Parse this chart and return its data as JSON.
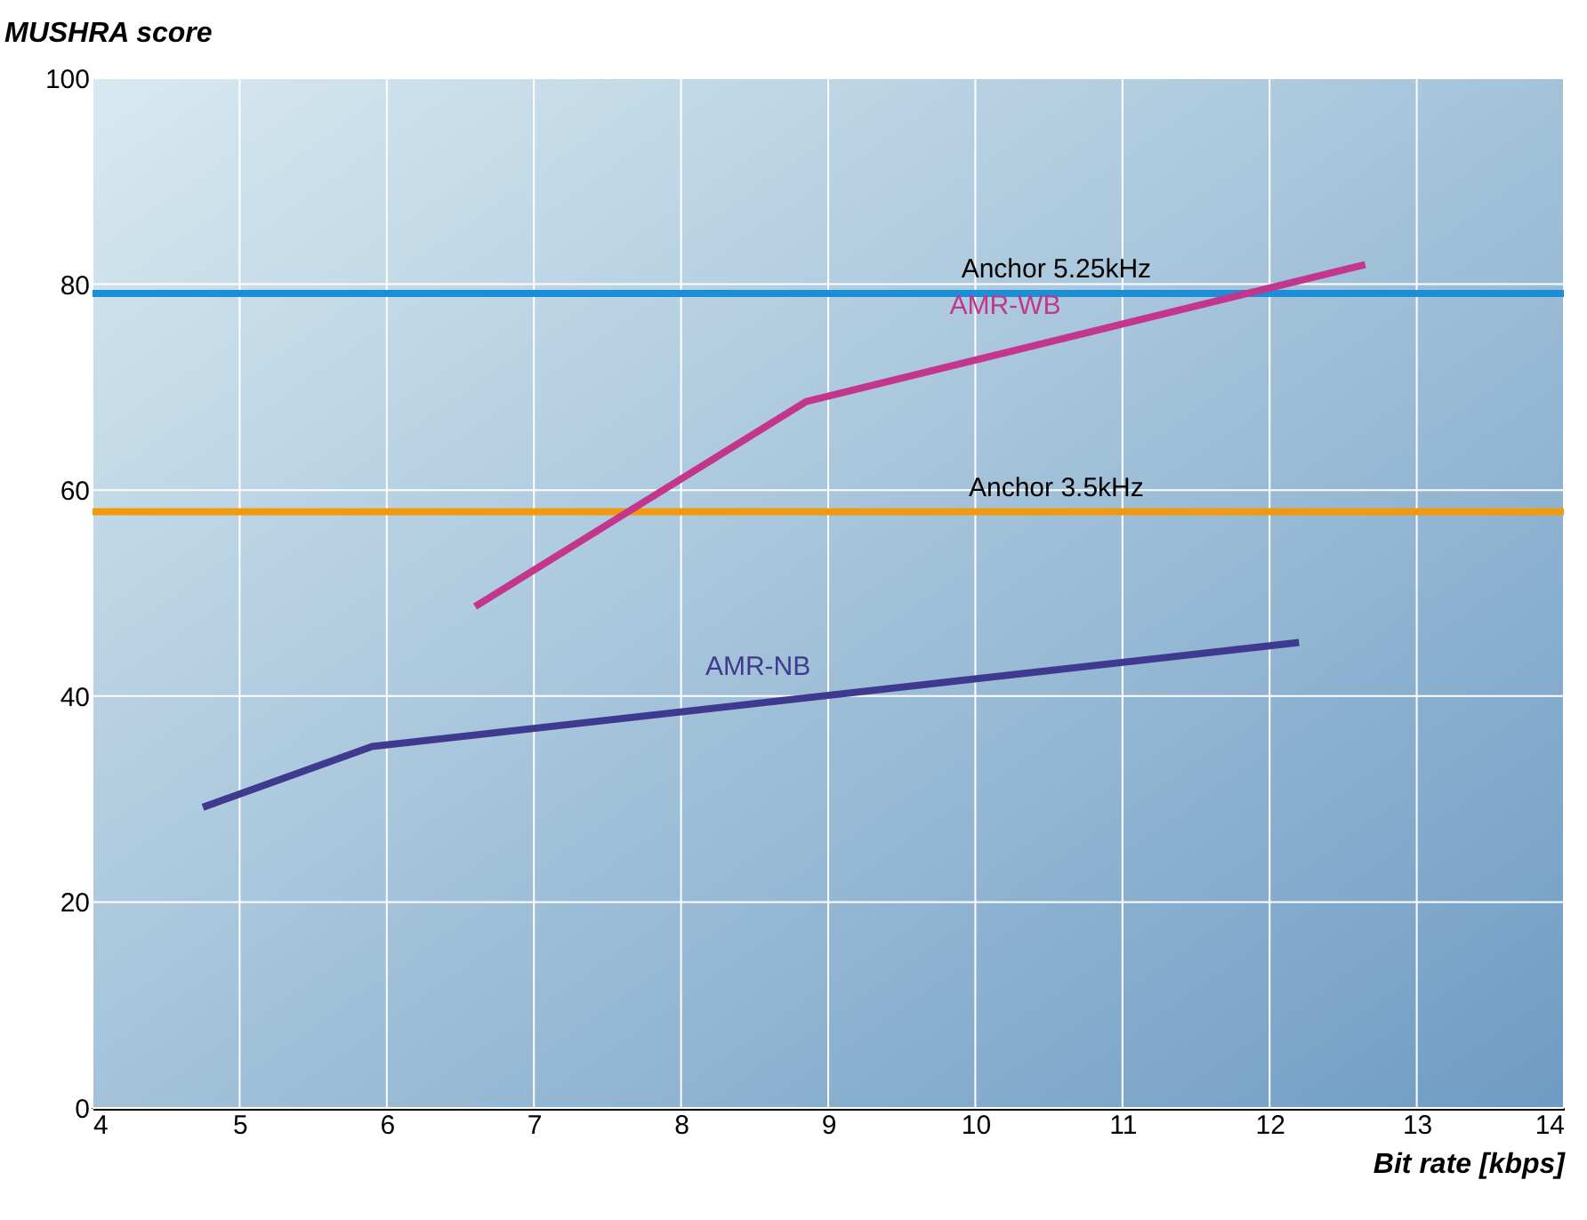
{
  "chart_data": {
    "type": "line",
    "xlabel": "Bit rate [kbps]",
    "ylabel": "MUSHRA score",
    "xlim": [
      4,
      14
    ],
    "xticks": [
      4,
      5,
      6,
      7,
      8,
      9,
      10,
      11,
      12,
      13,
      14
    ],
    "ylim": [
      0,
      100
    ],
    "yticks": [
      0,
      20,
      40,
      60,
      80,
      100
    ],
    "grid": true,
    "series": [
      {
        "name": "AMR-WB",
        "color": "#c4368e",
        "x": [
          6.6,
          8.85,
          12.65
        ],
        "values": [
          48.7,
          68.6,
          81.9
        ]
      },
      {
        "name": "AMR-NB",
        "color": "#3f3a8f",
        "x": [
          4.75,
          5.9,
          12.2
        ],
        "values": [
          29.2,
          35.1,
          45.2
        ]
      }
    ],
    "ref_lines": [
      {
        "axis": "y",
        "value": 79.1,
        "label": "Anchor 5.25kHz",
        "color": "#1a8fd6"
      },
      {
        "axis": "y",
        "value": 57.9,
        "label": "Anchor 3.5kHz",
        "color": "#f29a0e"
      }
    ]
  }
}
